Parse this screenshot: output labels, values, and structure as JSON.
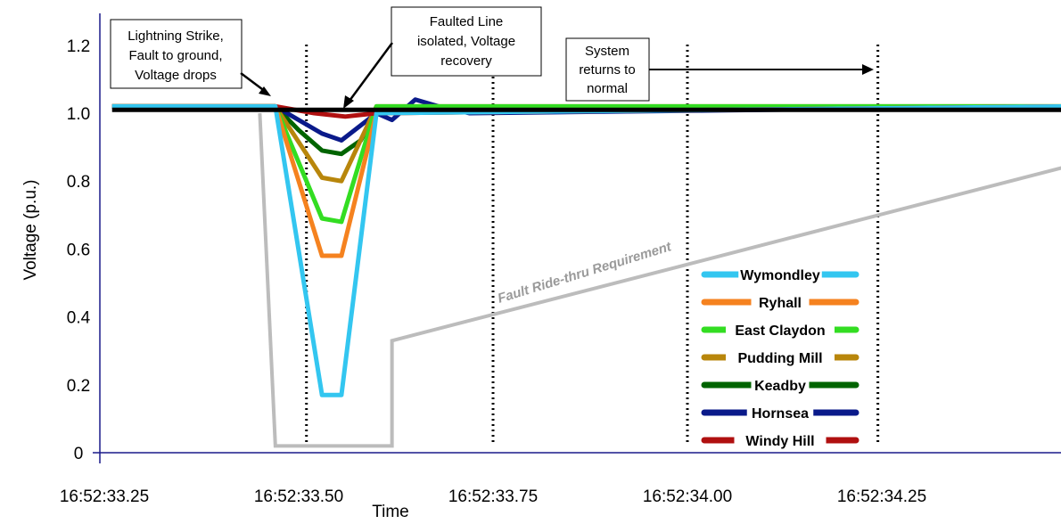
{
  "chart_data": {
    "type": "line",
    "xlabel": "Time",
    "ylabel": "Voltage (p.u.)",
    "xlim": [
      33.25,
      34.5
    ],
    "ylim": [
      0,
      1.3
    ],
    "x_ticks": [
      {
        "value": 33.25,
        "label": "16:52:33.25"
      },
      {
        "value": 33.5,
        "label": "16:52:33.50"
      },
      {
        "value": 33.75,
        "label": "16:52:33.75"
      },
      {
        "value": 34.0,
        "label": "16:52:34.00"
      },
      {
        "value": 34.25,
        "label": "16:52:34.25"
      }
    ],
    "y_ticks": [
      {
        "value": 0,
        "label": "0"
      },
      {
        "value": 0.2,
        "label": "0.2"
      },
      {
        "value": 0.4,
        "label": "0.4"
      },
      {
        "value": 0.6,
        "label": "0.6"
      },
      {
        "value": 0.8,
        "label": "0.8"
      },
      {
        "value": 1.0,
        "label": "1.0"
      },
      {
        "value": 1.2,
        "label": "1.2"
      }
    ],
    "event_lines_x": [
      33.51,
      33.75,
      34.0,
      34.245
    ],
    "series": [
      {
        "name": "Keadby",
        "color": "#006400",
        "x": [
          33.26,
          33.47,
          33.5,
          33.53,
          33.555,
          33.58,
          33.6,
          34.5
        ],
        "y": [
          1.02,
          1.02,
          0.95,
          0.89,
          0.88,
          0.92,
          1.01,
          1.02
        ]
      },
      {
        "name": "Hornsea",
        "color": "#0a1a8a",
        "x": [
          33.26,
          33.47,
          33.53,
          33.555,
          33.6,
          33.62,
          33.65,
          33.68,
          33.72,
          34.5
        ],
        "y": [
          1.02,
          1.02,
          0.94,
          0.92,
          1.0,
          0.98,
          1.04,
          1.02,
          1.0,
          1.02
        ]
      },
      {
        "name": "Pudding Mill",
        "color": "#b8860b",
        "x": [
          33.26,
          33.47,
          33.53,
          33.555,
          33.6,
          34.5
        ],
        "y": [
          1.02,
          1.02,
          0.81,
          0.8,
          1.02,
          1.02
        ]
      },
      {
        "name": "East Claydon",
        "color": "#33dd22",
        "x": [
          33.26,
          33.47,
          33.53,
          33.555,
          33.6,
          34.5
        ],
        "y": [
          1.02,
          1.02,
          0.69,
          0.68,
          1.02,
          1.02
        ]
      },
      {
        "name": "Ryhall",
        "color": "#f5821f",
        "x": [
          33.26,
          33.47,
          33.53,
          33.555,
          33.6,
          34.5
        ],
        "y": [
          1.02,
          1.02,
          0.58,
          0.58,
          1.0,
          1.02
        ]
      },
      {
        "name": "Windy Hill",
        "color": "#b01010",
        "x": [
          33.26,
          33.47,
          33.52,
          33.56,
          33.6,
          34.5
        ],
        "y": [
          1.02,
          1.02,
          1.0,
          0.99,
          1.0,
          1.02
        ]
      },
      {
        "name": "Wymondley",
        "color": "#33c6f0",
        "x": [
          33.26,
          33.47,
          33.53,
          33.555,
          33.6,
          34.5
        ],
        "y": [
          1.02,
          1.02,
          0.17,
          0.17,
          1.0,
          1.02
        ]
      },
      {
        "name": "",
        "color": "#000000",
        "x": [
          33.26,
          34.5
        ],
        "y": [
          1.01,
          1.01
        ]
      }
    ],
    "requirement_line": {
      "label": "Fault Ride-thru Requirement",
      "color": "#bcbcbc",
      "x": [
        33.45,
        33.47,
        33.62,
        33.62,
        34.5
      ],
      "y": [
        1.0,
        0.02,
        0.02,
        0.33,
        0.85
      ]
    },
    "legend": {
      "placement": "bottom-right",
      "entries": [
        {
          "name": "Wymondley",
          "color": "#33c6f0"
        },
        {
          "name": "Ryhall",
          "color": "#f5821f"
        },
        {
          "name": "East Claydon",
          "color": "#33dd22"
        },
        {
          "name": "Pudding Mill",
          "color": "#b8860b"
        },
        {
          "name": "Keadby",
          "color": "#006400"
        },
        {
          "name": "Hornsea",
          "color": "#0a1a8a"
        },
        {
          "name": "Windy Hill",
          "color": "#b01010"
        }
      ]
    },
    "annotations": [
      {
        "lines": [
          "Lightning Strike,",
          "Fault to ground,",
          "Voltage drops"
        ]
      },
      {
        "lines": [
          "Faulted Line",
          "isolated, Voltage",
          "recovery"
        ]
      },
      {
        "lines": [
          "System",
          "returns to",
          "normal"
        ]
      }
    ]
  }
}
